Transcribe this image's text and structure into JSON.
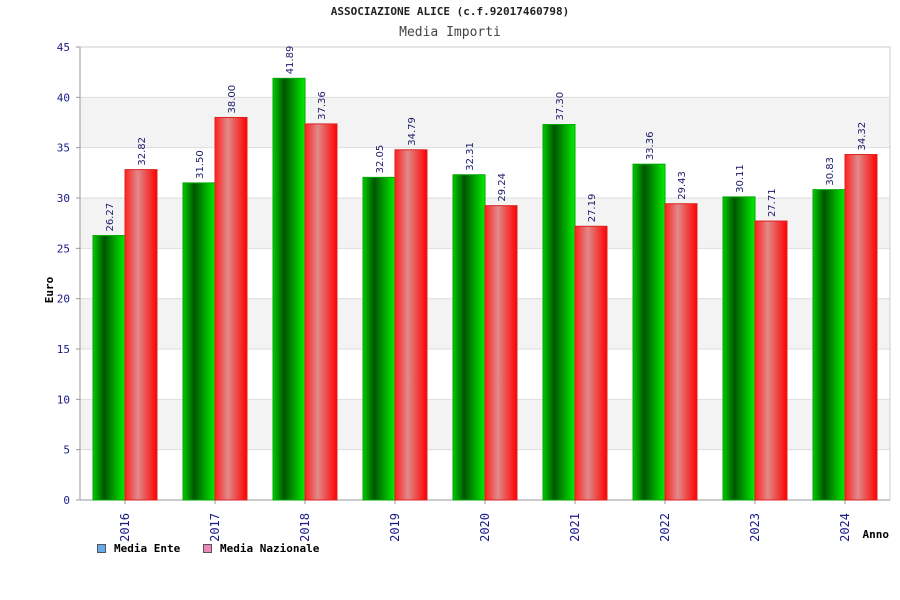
{
  "chart_data": {
    "type": "bar",
    "title": "ASSOCIAZIONE ALICE (c.f.92017460798)",
    "subtitle": "Media Importi",
    "xlabel": "Anno",
    "ylabel": "Euro",
    "ylim": [
      0,
      45
    ],
    "yticks": [
      "0",
      "5",
      "10",
      "15",
      "20",
      "25",
      "30",
      "35",
      "40",
      "45"
    ],
    "categories": [
      "2016",
      "2017",
      "2018",
      "2019",
      "2020",
      "2021",
      "2022",
      "2023",
      "2024"
    ],
    "series": [
      {
        "name": "Media Ente",
        "values": [
          26.27,
          31.5,
          41.89,
          32.05,
          32.31,
          37.3,
          33.36,
          30.11,
          30.83
        ],
        "labels": [
          "26.27",
          "31.50",
          "41.89",
          "32.05",
          "32.31",
          "37.30",
          "33.36",
          "30.11",
          "30.83"
        ],
        "color": "#00b000"
      },
      {
        "name": "Media Nazionale",
        "values": [
          32.82,
          38.0,
          37.36,
          34.79,
          29.24,
          27.19,
          29.43,
          27.71,
          34.32
        ],
        "labels": [
          "32.82",
          "38.00",
          "37.36",
          "34.79",
          "29.24",
          "27.19",
          "29.43",
          "27.71",
          "34.32"
        ],
        "color": "#ee1111"
      }
    ],
    "legend": {
      "placement": "bottom-left",
      "swatch_colors": [
        "#66aaee",
        "#ee88bb"
      ]
    },
    "grid": true
  }
}
